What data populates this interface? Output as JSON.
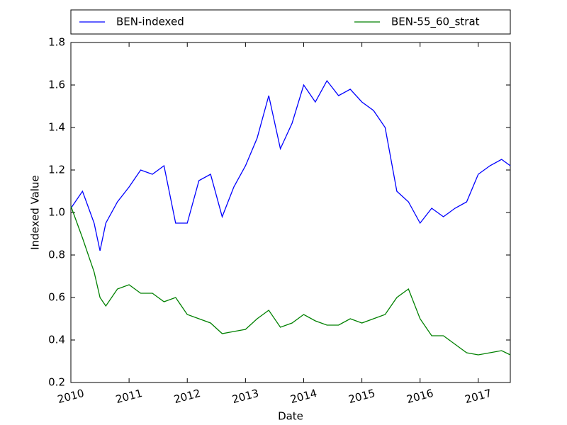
{
  "chart_data": {
    "type": "line",
    "x_label": "Date",
    "y_label": "Indexed Value",
    "x": [
      2010.0,
      2010.2,
      2010.4,
      2010.5,
      2010.6,
      2010.8,
      2011.0,
      2011.2,
      2011.4,
      2011.6,
      2011.8,
      2012.0,
      2012.2,
      2012.4,
      2012.6,
      2012.8,
      2013.0,
      2013.2,
      2013.4,
      2013.6,
      2013.8,
      2014.0,
      2014.2,
      2014.4,
      2014.6,
      2014.8,
      2015.0,
      2015.2,
      2015.4,
      2015.6,
      2015.8,
      2016.0,
      2016.2,
      2016.4,
      2016.6,
      2016.8,
      2017.0,
      2017.2,
      2017.4,
      2017.55
    ],
    "series": [
      {
        "name": "BEN-indexed",
        "color": "#0000ff",
        "values": [
          1.02,
          1.1,
          0.95,
          0.82,
          0.95,
          1.05,
          1.12,
          1.2,
          1.18,
          1.22,
          0.95,
          0.95,
          1.15,
          1.18,
          0.98,
          1.12,
          1.22,
          1.35,
          1.55,
          1.3,
          1.42,
          1.6,
          1.52,
          1.62,
          1.55,
          1.58,
          1.52,
          1.48,
          1.4,
          1.1,
          1.05,
          0.95,
          1.02,
          0.98,
          1.02,
          1.05,
          1.18,
          1.22,
          1.25,
          1.22
        ]
      },
      {
        "name": "BEN-55_60_strat",
        "color": "#008000",
        "values": [
          1.03,
          0.88,
          0.72,
          0.6,
          0.56,
          0.64,
          0.66,
          0.62,
          0.62,
          0.58,
          0.6,
          0.52,
          0.5,
          0.48,
          0.43,
          0.44,
          0.45,
          0.5,
          0.54,
          0.46,
          0.48,
          0.52,
          0.49,
          0.47,
          0.47,
          0.5,
          0.48,
          0.5,
          0.52,
          0.6,
          0.64,
          0.5,
          0.42,
          0.42,
          0.38,
          0.34,
          0.33,
          0.34,
          0.35,
          0.33
        ]
      }
    ],
    "xlim": [
      2010,
      2017.55
    ],
    "xticks": [
      2010,
      2011,
      2012,
      2013,
      2014,
      2015,
      2016,
      2017
    ],
    "ylim": [
      0.2,
      1.8
    ],
    "yticks": [
      0.2,
      0.4,
      0.6,
      0.8,
      {
        "value": 1,
        "label": "1.0"
      },
      1.2,
      1.4,
      1.6,
      1.8
    ],
    "grid": false,
    "legend": "top"
  }
}
